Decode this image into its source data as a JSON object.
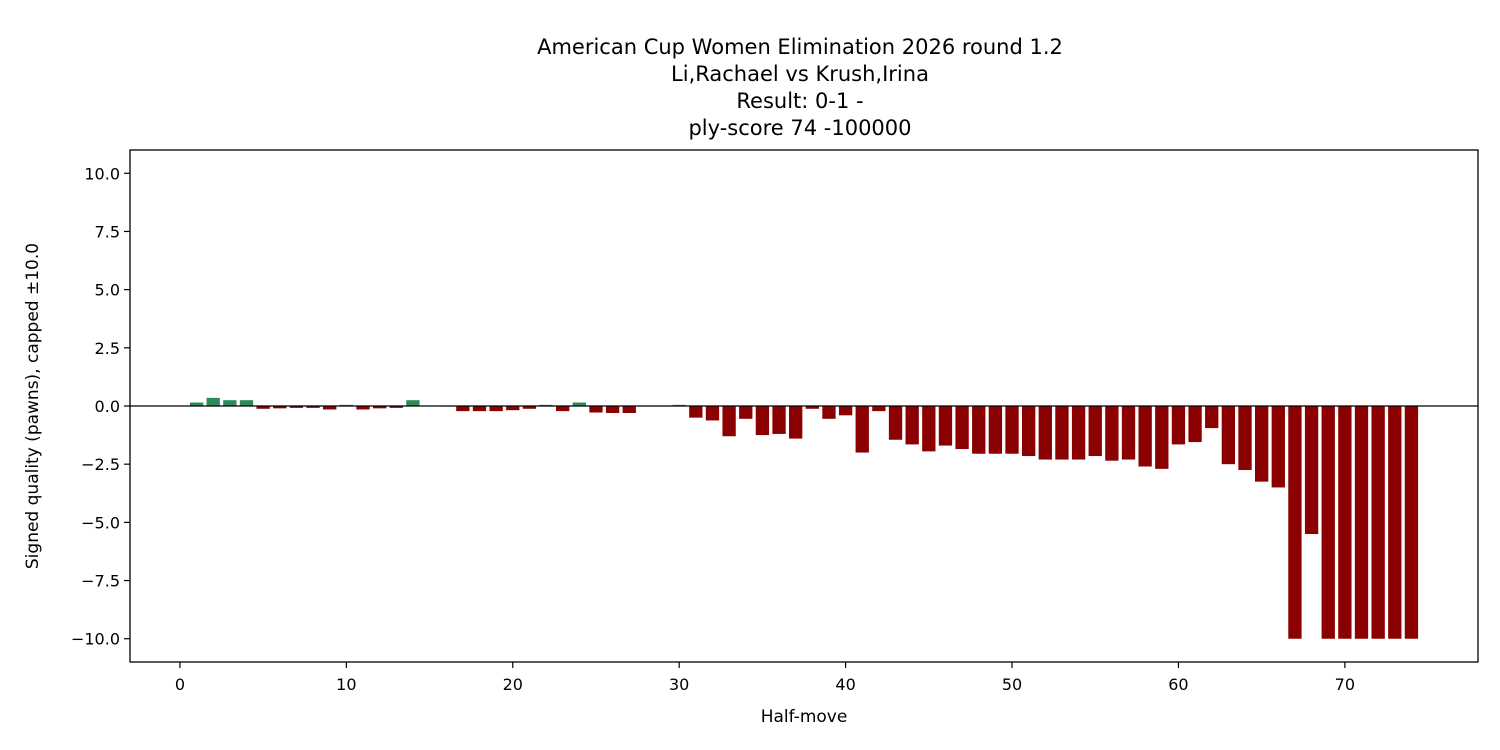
{
  "chart_data": {
    "type": "bar",
    "title_lines": [
      "American Cup Women Elimination 2026  round 1.2",
      "Li,Rachael vs Krush,Irina",
      "Result: 0-1 -",
      "ply-score 74 -100000"
    ],
    "xlabel": "Half-move",
    "ylabel": "Signed quality (pawns), capped ±10.0",
    "xlim": [
      -3,
      78
    ],
    "ylim": [
      -11,
      11
    ],
    "xticks": [
      0,
      10,
      20,
      30,
      40,
      50,
      60,
      70
    ],
    "yticks": [
      10.0,
      7.5,
      5.0,
      2.5,
      0.0,
      -2.5,
      -5.0,
      -7.5,
      -10.0
    ],
    "ytick_labels": [
      "10.0",
      "7.5",
      "5.0",
      "2.5",
      "0.0",
      "−2.5",
      "−5.0",
      "−7.5",
      "−10.0"
    ],
    "zero_line": true,
    "colors": {
      "positive": "#2e8b57",
      "negative": "#8b0000"
    },
    "x": [
      1,
      2,
      3,
      4,
      5,
      6,
      7,
      8,
      9,
      10,
      11,
      12,
      13,
      14,
      15,
      16,
      17,
      18,
      19,
      20,
      21,
      22,
      23,
      24,
      25,
      26,
      27,
      28,
      29,
      30,
      31,
      32,
      33,
      34,
      35,
      36,
      37,
      38,
      39,
      40,
      41,
      42,
      43,
      44,
      45,
      46,
      47,
      48,
      49,
      50,
      51,
      52,
      53,
      54,
      55,
      56,
      57,
      58,
      59,
      60,
      61,
      62,
      63,
      64,
      65,
      66,
      67,
      68,
      69,
      70,
      71,
      72,
      73,
      74
    ],
    "values": [
      0.15,
      0.35,
      0.25,
      0.25,
      -0.12,
      -0.1,
      -0.08,
      -0.08,
      -0.15,
      0.05,
      -0.15,
      -0.1,
      -0.08,
      0.25,
      0.02,
      0.0,
      -0.22,
      -0.22,
      -0.22,
      -0.18,
      -0.12,
      0.05,
      -0.22,
      0.15,
      -0.28,
      -0.3,
      -0.3,
      0.0,
      0.0,
      0.05,
      -0.5,
      -0.62,
      -1.3,
      -0.55,
      -1.25,
      -1.2,
      -1.4,
      -0.12,
      -0.55,
      -0.4,
      -2.0,
      -0.22,
      -1.45,
      -1.65,
      -1.95,
      -1.7,
      -1.85,
      -2.05,
      -2.05,
      -2.05,
      -2.15,
      -2.3,
      -2.3,
      -2.3,
      -2.15,
      -2.35,
      -2.3,
      -2.6,
      -2.7,
      -1.65,
      -1.55,
      -0.95,
      -2.5,
      -2.75,
      -3.25,
      -3.5,
      -10.0,
      -5.5,
      -10.0,
      -10.0,
      -10.0,
      -10.0,
      -10.0,
      -10.0
    ]
  }
}
